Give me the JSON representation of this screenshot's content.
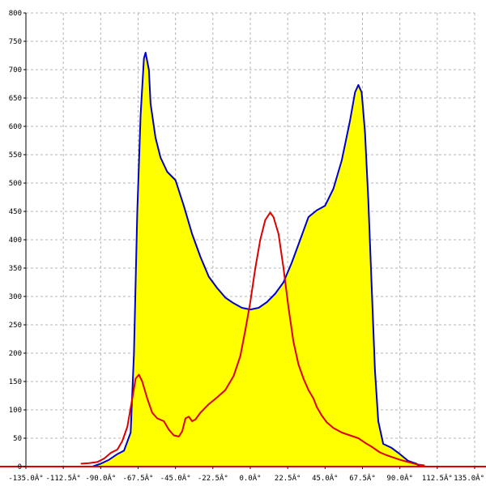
{
  "chart_data": {
    "type": "area",
    "title": "",
    "xlabel": "",
    "ylabel": "",
    "xlim": [
      -135,
      135
    ],
    "ylim": [
      0,
      800
    ],
    "grid": true,
    "x_ticks": [
      -135,
      -112.5,
      -90,
      -67.5,
      -45,
      -22.5,
      0,
      22.5,
      45,
      67.5,
      90,
      112.5,
      135
    ],
    "x_tick_labels": [
      "-135.0Â°",
      "-112.5Â°",
      "-90.0Â°",
      "-67.5Â°",
      "-45.0Â°",
      "-22.5Â°",
      "0.0Â°",
      "22.5Â°",
      "45.0Â°",
      "67.5Â°",
      "90.0Â°",
      "112.5Â°",
      "135.0Â°"
    ],
    "y_ticks": [
      0,
      50,
      100,
      150,
      200,
      250,
      300,
      350,
      400,
      450,
      500,
      550,
      600,
      650,
      700,
      750,
      800
    ],
    "y_tick_labels": [
      "0",
      "50",
      "100",
      "150",
      "200",
      "250",
      "300",
      "350",
      "400",
      "450",
      "500",
      "550",
      "600",
      "650",
      "700",
      "750",
      "800"
    ],
    "series": [
      {
        "color": "#0000cc",
        "fill": "#ffff00",
        "points": [
          [
            -95,
            0
          ],
          [
            -90,
            5
          ],
          [
            -85,
            12
          ],
          [
            -80,
            22
          ],
          [
            -76,
            28
          ],
          [
            -72,
            60
          ],
          [
            -70,
            200
          ],
          [
            -68,
            450
          ],
          [
            -66,
            620
          ],
          [
            -64,
            720
          ],
          [
            -63,
            730
          ],
          [
            -61,
            700
          ],
          [
            -60,
            640
          ],
          [
            -57,
            580
          ],
          [
            -54,
            545
          ],
          [
            -50,
            520
          ],
          [
            -45,
            505
          ],
          [
            -40,
            460
          ],
          [
            -35,
            410
          ],
          [
            -30,
            370
          ],
          [
            -25,
            335
          ],
          [
            -20,
            315
          ],
          [
            -15,
            298
          ],
          [
            -10,
            288
          ],
          [
            -5,
            280
          ],
          [
            0,
            277
          ],
          [
            5,
            280
          ],
          [
            10,
            290
          ],
          [
            15,
            305
          ],
          [
            20,
            325
          ],
          [
            25,
            360
          ],
          [
            30,
            400
          ],
          [
            35,
            440
          ],
          [
            40,
            452
          ],
          [
            45,
            460
          ],
          [
            50,
            490
          ],
          [
            55,
            540
          ],
          [
            60,
            610
          ],
          [
            63,
            660
          ],
          [
            65,
            673
          ],
          [
            67,
            660
          ],
          [
            69,
            590
          ],
          [
            71,
            470
          ],
          [
            73,
            320
          ],
          [
            75,
            170
          ],
          [
            77,
            80
          ],
          [
            80,
            40
          ],
          [
            85,
            33
          ],
          [
            90,
            22
          ],
          [
            95,
            10
          ],
          [
            100,
            5
          ],
          [
            102,
            0
          ]
        ]
      },
      {
        "color": "#dd0000",
        "fill": "none",
        "points": [
          [
            -102,
            5
          ],
          [
            -97,
            6
          ],
          [
            -92,
            8
          ],
          [
            -88,
            14
          ],
          [
            -84,
            24
          ],
          [
            -80,
            30
          ],
          [
            -77,
            45
          ],
          [
            -74,
            70
          ],
          [
            -71,
            120
          ],
          [
            -69,
            155
          ],
          [
            -67,
            162
          ],
          [
            -65,
            150
          ],
          [
            -62,
            120
          ],
          [
            -59,
            95
          ],
          [
            -56,
            85
          ],
          [
            -52,
            80
          ],
          [
            -49,
            65
          ],
          [
            -46,
            55
          ],
          [
            -43,
            53
          ],
          [
            -41,
            62
          ],
          [
            -39,
            85
          ],
          [
            -37,
            88
          ],
          [
            -35,
            80
          ],
          [
            -33,
            83
          ],
          [
            -30,
            95
          ],
          [
            -25,
            110
          ],
          [
            -20,
            122
          ],
          [
            -15,
            135
          ],
          [
            -10,
            160
          ],
          [
            -6,
            195
          ],
          [
            -3,
            240
          ],
          [
            0,
            290
          ],
          [
            3,
            350
          ],
          [
            6,
            400
          ],
          [
            9,
            435
          ],
          [
            12,
            448
          ],
          [
            14,
            440
          ],
          [
            17,
            410
          ],
          [
            20,
            350
          ],
          [
            23,
            280
          ],
          [
            26,
            220
          ],
          [
            29,
            180
          ],
          [
            32,
            155
          ],
          [
            35,
            135
          ],
          [
            38,
            120
          ],
          [
            40,
            105
          ],
          [
            43,
            90
          ],
          [
            46,
            78
          ],
          [
            50,
            68
          ],
          [
            55,
            60
          ],
          [
            60,
            55
          ],
          [
            65,
            50
          ],
          [
            69,
            42
          ],
          [
            73,
            35
          ],
          [
            78,
            25
          ],
          [
            82,
            20
          ],
          [
            86,
            16
          ],
          [
            90,
            12
          ],
          [
            95,
            8
          ],
          [
            100,
            4
          ],
          [
            105,
            2
          ]
        ]
      }
    ]
  }
}
